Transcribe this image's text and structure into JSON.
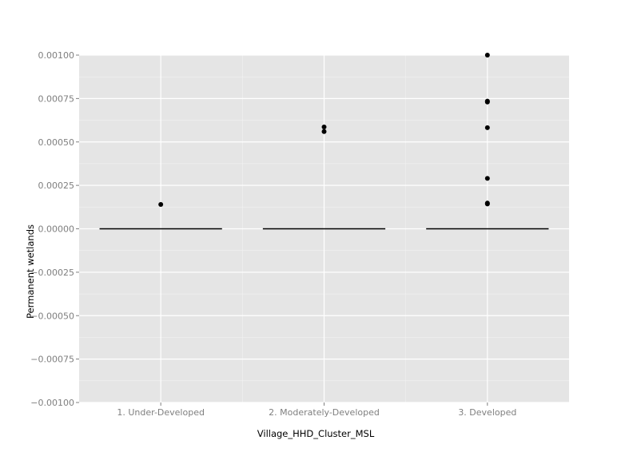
{
  "chart_data": {
    "type": "boxplot",
    "title": "",
    "xlabel": "Village_HHD_Cluster_MSL",
    "ylabel": "Permanent wetlands",
    "categories": [
      "1. Under-Developed",
      "2. Moderately-Developed",
      "3. Developed"
    ],
    "ylim": [
      -0.001,
      0.001
    ],
    "y_ticks": [
      -0.001,
      -0.00075,
      -0.0005,
      -0.00025,
      0.0,
      0.00025,
      0.0005,
      0.00075,
      0.001
    ],
    "y_tick_labels": [
      "−0.00100",
      "−0.00075",
      "−0.00050",
      "−0.00025",
      "0.00000",
      "0.00025",
      "0.00050",
      "0.00075",
      "0.00100"
    ],
    "medians": [
      0.0,
      0.0,
      0.0
    ],
    "outliers": [
      {
        "category": "1. Under-Developed",
        "values": [
          0.00014
        ]
      },
      {
        "category": "2. Moderately-Developed",
        "values": [
          0.000586,
          0.00056
        ]
      },
      {
        "category": "3. Developed",
        "values": [
          0.001,
          0.000735,
          0.00073,
          0.000582,
          0.00029,
          0.000148,
          0.000143
        ]
      }
    ],
    "grid": true,
    "legend": "none"
  },
  "colors": {
    "panel_background": "#e5e5e5",
    "major_grid": "#ffffff",
    "minor_grid": "#f2f2f2",
    "marks": "#000000",
    "tick_text": "#7f7f7f"
  }
}
